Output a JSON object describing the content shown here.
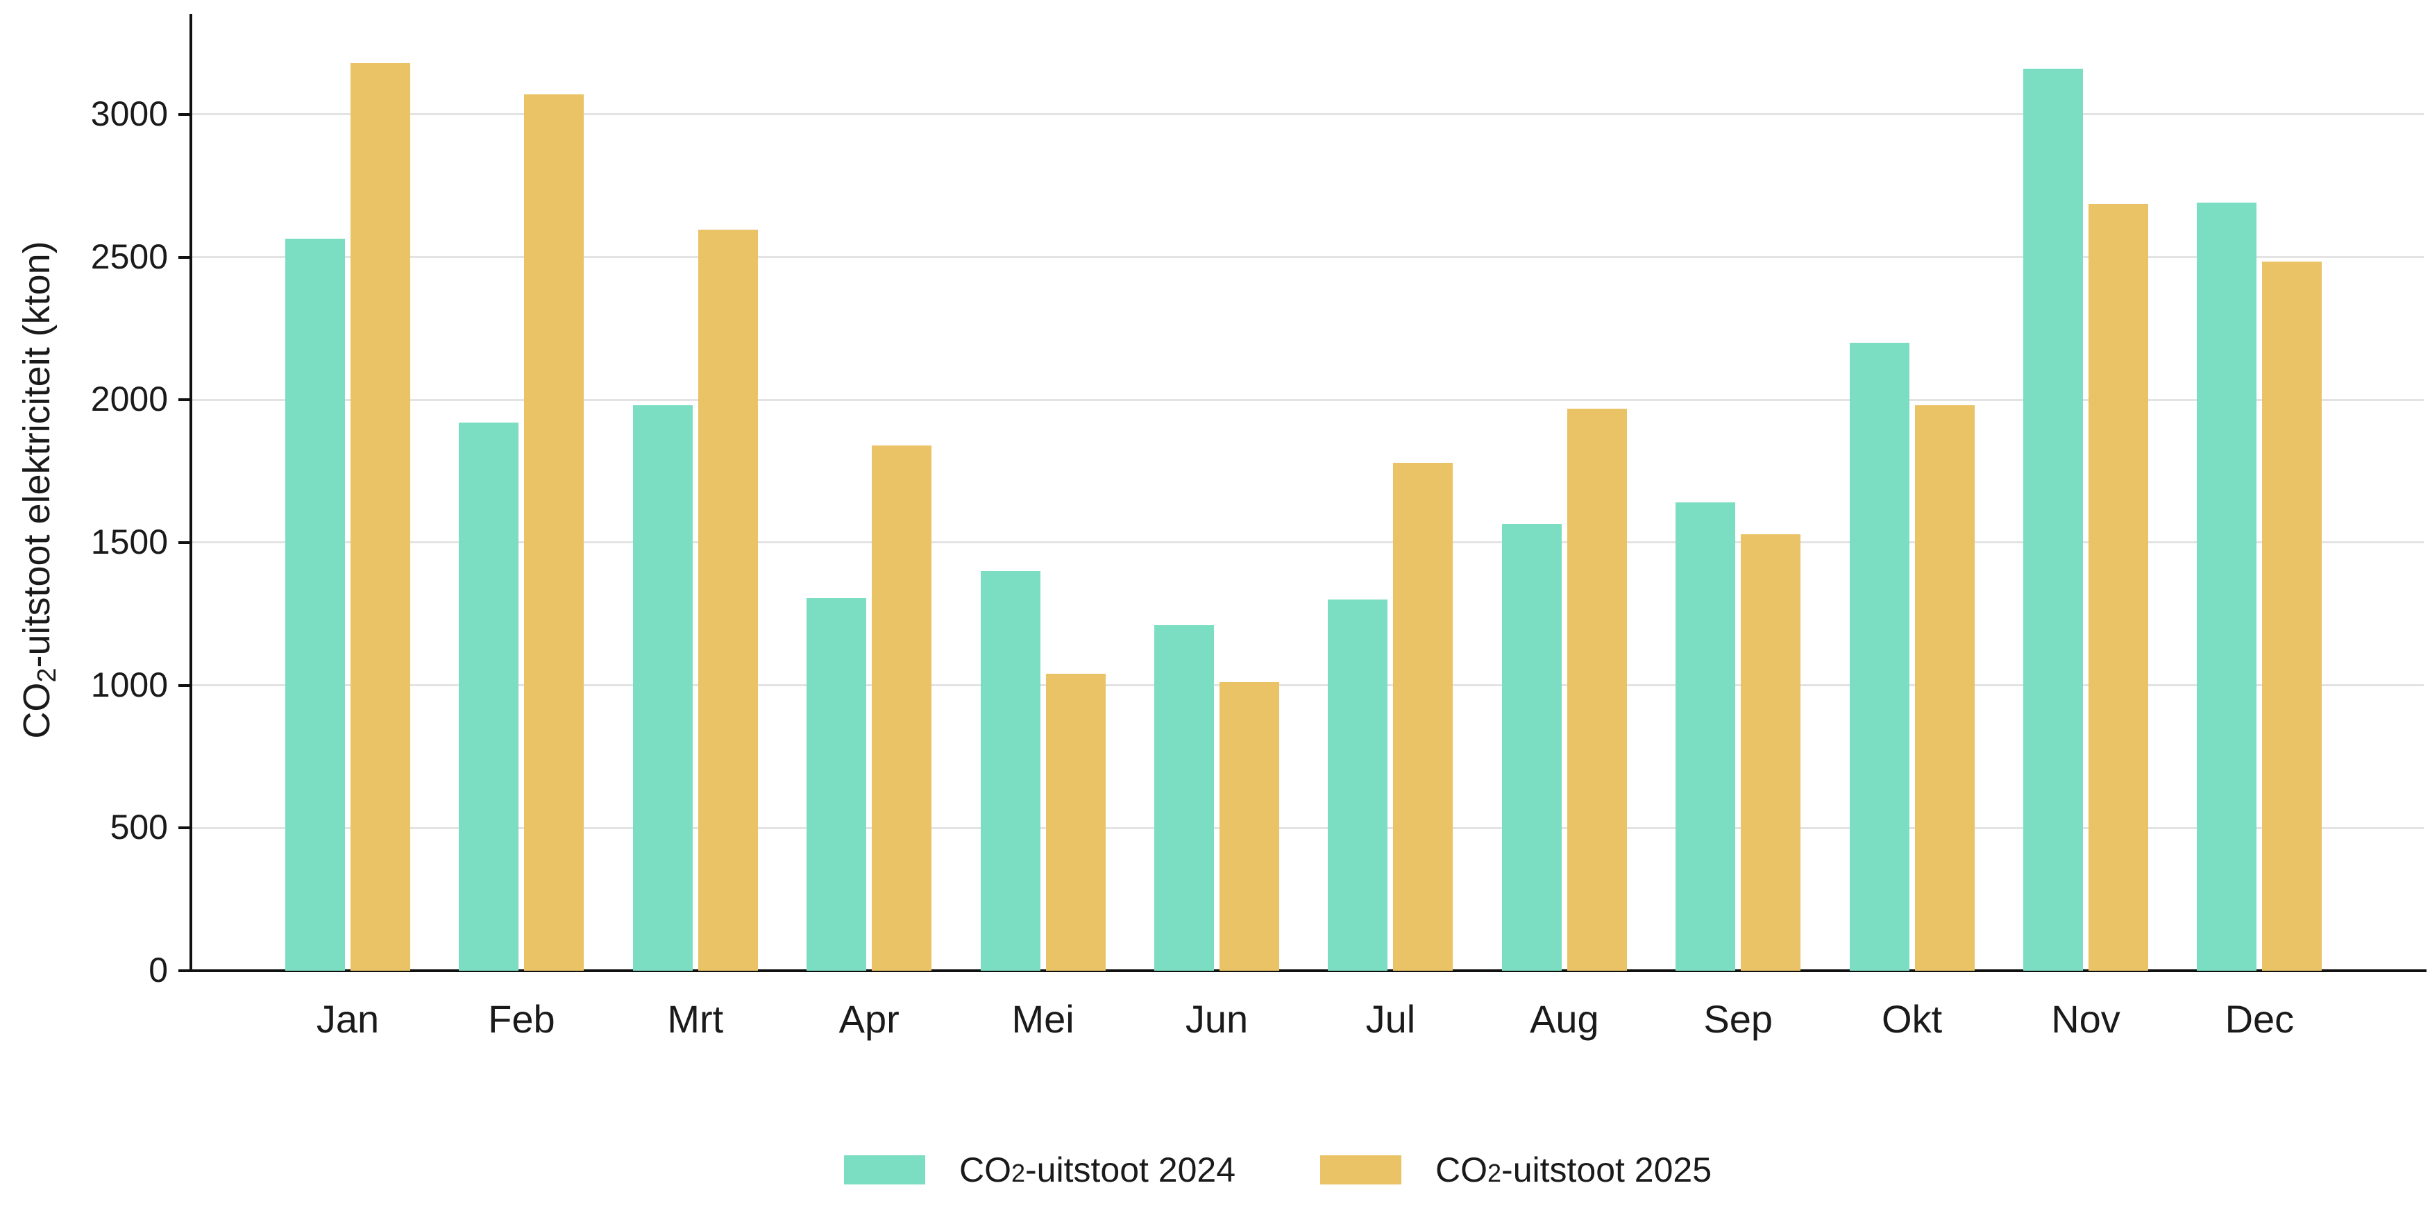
{
  "chart_data": {
    "type": "bar",
    "title": "",
    "xlabel": "",
    "ylabel": "CO2-uitstoot elektriciteit (kton)",
    "ylabel_parts": {
      "prefix": "CO",
      "sub": "2",
      "rest": "-uitstoot elektriciteit (kton)"
    },
    "categories": [
      "Jan",
      "Feb",
      "Mrt",
      "Apr",
      "Mei",
      "Jun",
      "Jul",
      "Aug",
      "Sep",
      "Okt",
      "Nov",
      "Dec"
    ],
    "series": [
      {
        "name": "CO2-uitstoot 2024",
        "label_parts": {
          "prefix": "CO",
          "sub": "2",
          "rest": "-uitstoot 2024"
        },
        "color": "#7BDEC2",
        "values": [
          2565,
          1920,
          1980,
          1305,
          1400,
          1210,
          1300,
          1565,
          1640,
          2200,
          3160,
          2690
        ]
      },
      {
        "name": "CO2-uitstoot 2025",
        "label_parts": {
          "prefix": "CO",
          "sub": "2",
          "rest": "-uitstoot 2025"
        },
        "color": "#E9C366",
        "values": [
          3180,
          3070,
          2595,
          1840,
          1040,
          1010,
          1780,
          1970,
          1530,
          1980,
          2685,
          2485
        ]
      }
    ],
    "yticks": [
      0,
      500,
      1000,
      1500,
      2000,
      2500,
      3000
    ],
    "ytick_labels": [
      "0",
      "500",
      "1000",
      "1500",
      "2000",
      "2500",
      "3000"
    ],
    "ylim": [
      0,
      3355
    ],
    "grid": true,
    "legend_position": "bottom",
    "colors": {
      "axis": "#111111",
      "gridline": "#e3e3e3",
      "text": "#1a1a1a",
      "background": "#ffffff"
    }
  }
}
